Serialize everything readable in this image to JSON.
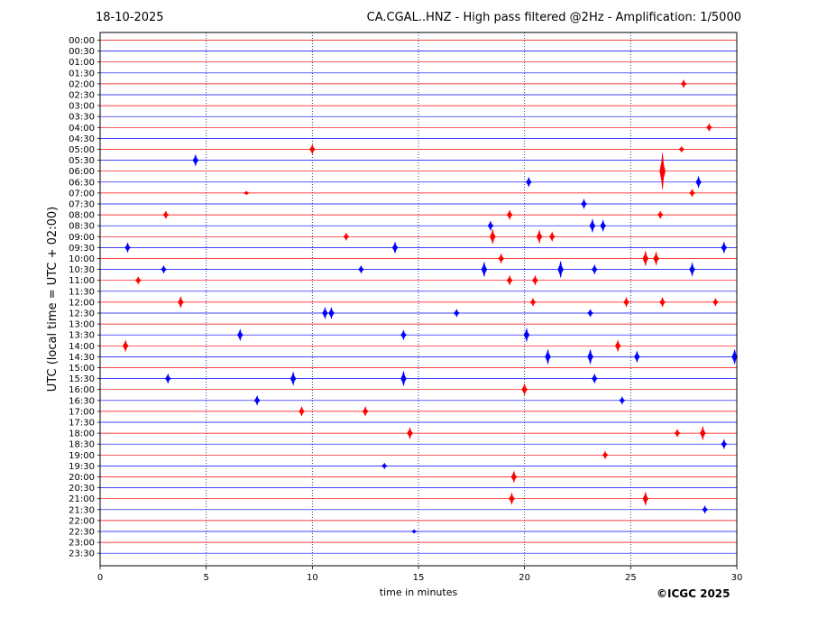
{
  "header": {
    "date": "18-10-2025",
    "title": "CA.CGAL..HNZ - High pass filtered @2Hz - Amplification: 1/5000"
  },
  "copyright": "©ICGC 2025",
  "colors": {
    "red": "#ff0000",
    "blue": "#0000ff",
    "grid": "#000080"
  },
  "chart_data": {
    "type": "line",
    "title": "CA.CGAL..HNZ - High pass filtered @2Hz - Amplification: 1/5000",
    "xlabel": "time in minutes",
    "ylabel": "UTC (local time = UTC + 02:00)",
    "xlim": [
      0,
      30
    ],
    "xticks": [
      0,
      5,
      10,
      15,
      20,
      25,
      30
    ],
    "vertical_gridlines_at": [
      5,
      10,
      15,
      20,
      25
    ],
    "row_colors_alternate": [
      "red",
      "blue"
    ],
    "rows": [
      "00:00",
      "00:30",
      "01:00",
      "01:30",
      "02:00",
      "02:30",
      "03:00",
      "03:30",
      "04:00",
      "04:30",
      "05:00",
      "05:30",
      "06:00",
      "06:30",
      "07:00",
      "07:30",
      "08:00",
      "08:30",
      "09:00",
      "09:30",
      "10:00",
      "10:30",
      "11:00",
      "11:30",
      "12:00",
      "12:30",
      "13:00",
      "13:30",
      "14:00",
      "14:30",
      "15:00",
      "15:30",
      "16:00",
      "16:30",
      "17:00",
      "17:30",
      "18:00",
      "18:30",
      "19:00",
      "19:30",
      "20:00",
      "20:30",
      "21:00",
      "21:30",
      "22:00",
      "22:30",
      "23:00",
      "23:30"
    ],
    "events": [
      {
        "row": "02:00",
        "t": 27.5,
        "amp": 4
      },
      {
        "row": "04:00",
        "t": 28.7,
        "amp": 4
      },
      {
        "row": "05:00",
        "t": 10.0,
        "amp": 5
      },
      {
        "row": "05:00",
        "t": 27.4,
        "amp": 3
      },
      {
        "row": "05:30",
        "t": 4.5,
        "amp": 6
      },
      {
        "row": "06:00",
        "t": 26.5,
        "amp": 20
      },
      {
        "row": "06:30",
        "t": 20.2,
        "amp": 5
      },
      {
        "row": "06:30",
        "t": 28.2,
        "amp": 6
      },
      {
        "row": "07:00",
        "t": 6.9,
        "amp": 2
      },
      {
        "row": "07:00",
        "t": 27.9,
        "amp": 4
      },
      {
        "row": "07:30",
        "t": 22.8,
        "amp": 5
      },
      {
        "row": "08:00",
        "t": 3.1,
        "amp": 4
      },
      {
        "row": "08:00",
        "t": 19.3,
        "amp": 5
      },
      {
        "row": "08:00",
        "t": 26.4,
        "amp": 4
      },
      {
        "row": "08:30",
        "t": 18.4,
        "amp": 5
      },
      {
        "row": "08:30",
        "t": 23.2,
        "amp": 7
      },
      {
        "row": "08:30",
        "t": 23.7,
        "amp": 6
      },
      {
        "row": "09:00",
        "t": 11.6,
        "amp": 4
      },
      {
        "row": "09:00",
        "t": 18.5,
        "amp": 8
      },
      {
        "row": "09:00",
        "t": 20.7,
        "amp": 7
      },
      {
        "row": "09:00",
        "t": 21.3,
        "amp": 5
      },
      {
        "row": "09:30",
        "t": 1.3,
        "amp": 5
      },
      {
        "row": "09:30",
        "t": 13.9,
        "amp": 6
      },
      {
        "row": "09:30",
        "t": 29.4,
        "amp": 6
      },
      {
        "row": "10:00",
        "t": 18.9,
        "amp": 5
      },
      {
        "row": "10:00",
        "t": 25.7,
        "amp": 8
      },
      {
        "row": "10:00",
        "t": 26.2,
        "amp": 7
      },
      {
        "row": "10:30",
        "t": 3.0,
        "amp": 4
      },
      {
        "row": "10:30",
        "t": 12.3,
        "amp": 4
      },
      {
        "row": "10:30",
        "t": 18.1,
        "amp": 8
      },
      {
        "row": "10:30",
        "t": 21.7,
        "amp": 9
      },
      {
        "row": "10:30",
        "t": 23.3,
        "amp": 5
      },
      {
        "row": "10:30",
        "t": 27.9,
        "amp": 7
      },
      {
        "row": "11:00",
        "t": 1.8,
        "amp": 4
      },
      {
        "row": "11:00",
        "t": 19.3,
        "amp": 5
      },
      {
        "row": "11:00",
        "t": 20.5,
        "amp": 5
      },
      {
        "row": "12:00",
        "t": 3.8,
        "amp": 6
      },
      {
        "row": "12:00",
        "t": 20.4,
        "amp": 4
      },
      {
        "row": "12:00",
        "t": 24.8,
        "amp": 5
      },
      {
        "row": "12:00",
        "t": 26.5,
        "amp": 5
      },
      {
        "row": "12:00",
        "t": 29.0,
        "amp": 4
      },
      {
        "row": "12:30",
        "t": 10.6,
        "amp": 6
      },
      {
        "row": "12:30",
        "t": 10.9,
        "amp": 6
      },
      {
        "row": "12:30",
        "t": 16.8,
        "amp": 4
      },
      {
        "row": "12:30",
        "t": 23.1,
        "amp": 4
      },
      {
        "row": "13:30",
        "t": 6.6,
        "amp": 6
      },
      {
        "row": "13:30",
        "t": 14.3,
        "amp": 5
      },
      {
        "row": "13:30",
        "t": 20.1,
        "amp": 7
      },
      {
        "row": "14:00",
        "t": 1.2,
        "amp": 6
      },
      {
        "row": "14:00",
        "t": 24.4,
        "amp": 6
      },
      {
        "row": "14:30",
        "t": 21.1,
        "amp": 8
      },
      {
        "row": "14:30",
        "t": 23.1,
        "amp": 8
      },
      {
        "row": "14:30",
        "t": 25.3,
        "amp": 6
      },
      {
        "row": "14:30",
        "t": 29.9,
        "amp": 8
      },
      {
        "row": "15:30",
        "t": 3.2,
        "amp": 5
      },
      {
        "row": "15:30",
        "t": 9.1,
        "amp": 7
      },
      {
        "row": "15:30",
        "t": 14.3,
        "amp": 8
      },
      {
        "row": "15:30",
        "t": 23.3,
        "amp": 5
      },
      {
        "row": "16:00",
        "t": 20.0,
        "amp": 6
      },
      {
        "row": "16:30",
        "t": 7.4,
        "amp": 5
      },
      {
        "row": "16:30",
        "t": 24.6,
        "amp": 4
      },
      {
        "row": "17:00",
        "t": 9.5,
        "amp": 5
      },
      {
        "row": "17:00",
        "t": 12.5,
        "amp": 5
      },
      {
        "row": "18:00",
        "t": 14.6,
        "amp": 6
      },
      {
        "row": "18:00",
        "t": 27.2,
        "amp": 4
      },
      {
        "row": "18:00",
        "t": 28.4,
        "amp": 7
      },
      {
        "row": "18:30",
        "t": 29.4,
        "amp": 5
      },
      {
        "row": "19:00",
        "t": 23.8,
        "amp": 4
      },
      {
        "row": "19:30",
        "t": 13.4,
        "amp": 3
      },
      {
        "row": "20:00",
        "t": 19.5,
        "amp": 6
      },
      {
        "row": "21:00",
        "t": 19.4,
        "amp": 6
      },
      {
        "row": "21:00",
        "t": 25.7,
        "amp": 7
      },
      {
        "row": "21:30",
        "t": 28.5,
        "amp": 4
      },
      {
        "row": "22:30",
        "t": 14.8,
        "amp": 2
      }
    ]
  }
}
